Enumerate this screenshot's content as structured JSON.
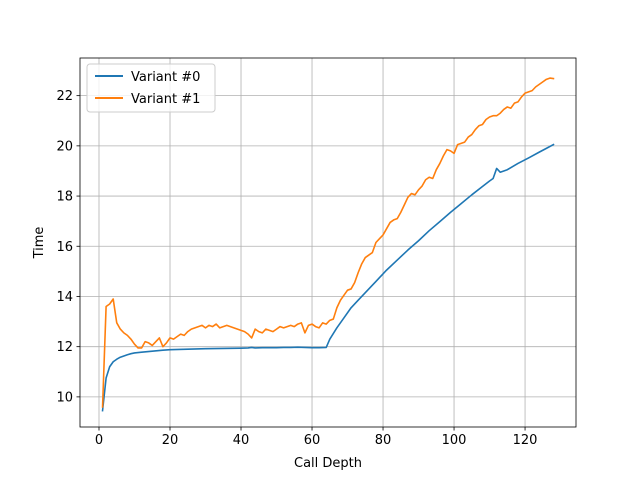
{
  "chart_data": {
    "type": "line",
    "title": "",
    "xlabel": "Call Depth",
    "ylabel": "Time",
    "xlim": [
      -5.35,
      134.35
    ],
    "ylim": [
      8.8,
      23.5
    ],
    "xticks": [
      0,
      20,
      40,
      60,
      80,
      100,
      120
    ],
    "yticks": [
      10,
      12,
      14,
      16,
      18,
      20,
      22
    ],
    "grid": true,
    "legend_position": "upper-left",
    "series": [
      {
        "name": "Variant #0",
        "color": "#1f77b4",
        "points": [
          [
            1,
            9.45
          ],
          [
            2,
            10.75
          ],
          [
            3,
            11.2
          ],
          [
            4,
            11.4
          ],
          [
            5,
            11.5
          ],
          [
            6,
            11.58
          ],
          [
            7,
            11.63
          ],
          [
            8,
            11.68
          ],
          [
            9,
            11.72
          ],
          [
            10,
            11.75
          ],
          [
            12,
            11.78
          ],
          [
            15,
            11.82
          ],
          [
            18,
            11.86
          ],
          [
            20,
            11.88
          ],
          [
            25,
            11.9
          ],
          [
            30,
            11.92
          ],
          [
            35,
            11.93
          ],
          [
            40,
            11.94
          ],
          [
            42,
            11.95
          ],
          [
            43,
            11.97
          ],
          [
            44,
            11.95
          ],
          [
            46,
            11.96
          ],
          [
            48,
            11.96
          ],
          [
            50,
            11.96
          ],
          [
            52,
            11.97
          ],
          [
            54,
            11.97
          ],
          [
            56,
            11.98
          ],
          [
            58,
            11.97
          ],
          [
            60,
            11.96
          ],
          [
            62,
            11.96
          ],
          [
            64,
            11.97
          ],
          [
            65,
            12.3
          ],
          [
            67,
            12.75
          ],
          [
            69,
            13.15
          ],
          [
            71,
            13.55
          ],
          [
            73,
            13.85
          ],
          [
            75,
            14.15
          ],
          [
            78,
            14.6
          ],
          [
            81,
            15.05
          ],
          [
            84,
            15.45
          ],
          [
            87,
            15.85
          ],
          [
            90,
            16.22
          ],
          [
            93,
            16.62
          ],
          [
            96,
            16.98
          ],
          [
            99,
            17.35
          ],
          [
            102,
            17.7
          ],
          [
            105,
            18.05
          ],
          [
            108,
            18.38
          ],
          [
            110,
            18.6
          ],
          [
            111,
            18.7
          ],
          [
            112,
            19.1
          ],
          [
            113,
            18.95
          ],
          [
            115,
            19.05
          ],
          [
            118,
            19.3
          ],
          [
            121,
            19.52
          ],
          [
            124,
            19.75
          ],
          [
            126,
            19.9
          ],
          [
            128,
            20.05
          ]
        ]
      },
      {
        "name": "Variant #1",
        "color": "#ff7f0e",
        "points": [
          [
            1,
            9.6
          ],
          [
            2,
            13.6
          ],
          [
            3,
            13.7
          ],
          [
            4,
            13.9
          ],
          [
            5,
            12.95
          ],
          [
            6,
            12.7
          ],
          [
            7,
            12.55
          ],
          [
            8,
            12.45
          ],
          [
            9,
            12.3
          ],
          [
            10,
            12.1
          ],
          [
            11,
            11.95
          ],
          [
            12,
            11.95
          ],
          [
            13,
            12.2
          ],
          [
            14,
            12.15
          ],
          [
            15,
            12.05
          ],
          [
            16,
            12.2
          ],
          [
            17,
            12.35
          ],
          [
            18,
            12.0
          ],
          [
            19,
            12.15
          ],
          [
            20,
            12.35
          ],
          [
            21,
            12.3
          ],
          [
            22,
            12.4
          ],
          [
            23,
            12.5
          ],
          [
            24,
            12.45
          ],
          [
            25,
            12.6
          ],
          [
            26,
            12.7
          ],
          [
            27,
            12.75
          ],
          [
            28,
            12.8
          ],
          [
            29,
            12.85
          ],
          [
            30,
            12.75
          ],
          [
            31,
            12.85
          ],
          [
            32,
            12.8
          ],
          [
            33,
            12.9
          ],
          [
            34,
            12.75
          ],
          [
            35,
            12.8
          ],
          [
            36,
            12.85
          ],
          [
            37,
            12.8
          ],
          [
            38,
            12.75
          ],
          [
            39,
            12.7
          ],
          [
            40,
            12.65
          ],
          [
            41,
            12.6
          ],
          [
            42,
            12.5
          ],
          [
            43,
            12.35
          ],
          [
            44,
            12.7
          ],
          [
            45,
            12.6
          ],
          [
            46,
            12.55
          ],
          [
            47,
            12.7
          ],
          [
            48,
            12.65
          ],
          [
            49,
            12.6
          ],
          [
            50,
            12.7
          ],
          [
            51,
            12.8
          ],
          [
            52,
            12.75
          ],
          [
            53,
            12.8
          ],
          [
            54,
            12.85
          ],
          [
            55,
            12.8
          ],
          [
            56,
            12.9
          ],
          [
            57,
            12.95
          ],
          [
            58,
            12.55
          ],
          [
            59,
            12.85
          ],
          [
            60,
            12.9
          ],
          [
            61,
            12.8
          ],
          [
            62,
            12.75
          ],
          [
            63,
            12.95
          ],
          [
            64,
            12.9
          ],
          [
            65,
            13.05
          ],
          [
            66,
            13.1
          ],
          [
            67,
            13.55
          ],
          [
            68,
            13.85
          ],
          [
            69,
            14.05
          ],
          [
            70,
            14.25
          ],
          [
            71,
            14.3
          ],
          [
            72,
            14.55
          ],
          [
            73,
            14.95
          ],
          [
            74,
            15.3
          ],
          [
            75,
            15.55
          ],
          [
            76,
            15.65
          ],
          [
            77,
            15.75
          ],
          [
            78,
            16.15
          ],
          [
            79,
            16.3
          ],
          [
            80,
            16.45
          ],
          [
            81,
            16.7
          ],
          [
            82,
            16.95
          ],
          [
            83,
            17.05
          ],
          [
            84,
            17.1
          ],
          [
            85,
            17.35
          ],
          [
            86,
            17.65
          ],
          [
            87,
            17.95
          ],
          [
            88,
            18.1
          ],
          [
            89,
            18.05
          ],
          [
            90,
            18.25
          ],
          [
            91,
            18.4
          ],
          [
            92,
            18.65
          ],
          [
            93,
            18.75
          ],
          [
            94,
            18.7
          ],
          [
            95,
            19.05
          ],
          [
            96,
            19.3
          ],
          [
            97,
            19.6
          ],
          [
            98,
            19.85
          ],
          [
            99,
            19.8
          ],
          [
            100,
            19.7
          ],
          [
            101,
            20.05
          ],
          [
            102,
            20.1
          ],
          [
            103,
            20.15
          ],
          [
            104,
            20.35
          ],
          [
            105,
            20.45
          ],
          [
            106,
            20.65
          ],
          [
            107,
            20.8
          ],
          [
            108,
            20.85
          ],
          [
            109,
            21.05
          ],
          [
            110,
            21.15
          ],
          [
            111,
            21.2
          ],
          [
            112,
            21.2
          ],
          [
            113,
            21.3
          ],
          [
            114,
            21.45
          ],
          [
            115,
            21.55
          ],
          [
            116,
            21.5
          ],
          [
            117,
            21.7
          ],
          [
            118,
            21.75
          ],
          [
            119,
            21.95
          ],
          [
            120,
            22.1
          ],
          [
            121,
            22.15
          ],
          [
            122,
            22.2
          ],
          [
            123,
            22.35
          ],
          [
            124,
            22.45
          ],
          [
            125,
            22.55
          ],
          [
            126,
            22.65
          ],
          [
            127,
            22.7
          ],
          [
            128,
            22.68
          ]
        ]
      }
    ]
  }
}
